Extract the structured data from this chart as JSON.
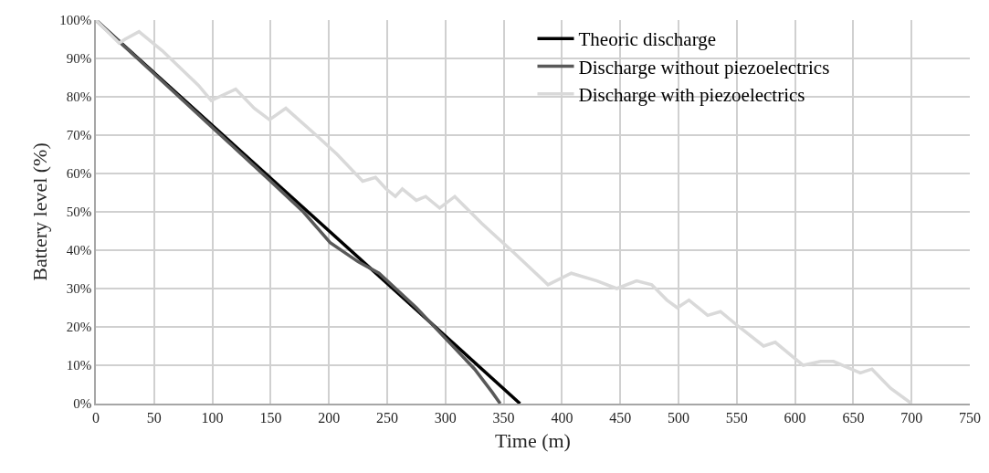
{
  "chart_data": {
    "type": "line",
    "xlabel": "Time (m)",
    "ylabel": "Battery level (%)",
    "series": [
      {
        "name": "Theoric discharge",
        "color": "#000000",
        "x": [
          0,
          364
        ],
        "values": [
          100,
          0
        ]
      },
      {
        "name": "Discharge without piezoelectrics",
        "color": "#595959",
        "x": [
          0,
          25,
          50,
          75,
          100,
          150,
          178,
          201,
          225,
          243,
          275,
          300,
          325,
          340,
          347
        ],
        "values": [
          100,
          93,
          86,
          79,
          72,
          58,
          50,
          42,
          37,
          34,
          25,
          17,
          9,
          3,
          0
        ]
      },
      {
        "name": "Discharge with piezoelectrics",
        "color": "#d9d9d9",
        "x": [
          0,
          20,
          25,
          37,
          57,
          88,
          99,
          120,
          136,
          149,
          163,
          189,
          207,
          229,
          240,
          249,
          257,
          263,
          275,
          283,
          295,
          308,
          331,
          360,
          388,
          408,
          430,
          447,
          464,
          477,
          490,
          499,
          509,
          525,
          536,
          552,
          573,
          583,
          607,
          622,
          633,
          656,
          666,
          682,
          700
        ],
        "values": [
          100,
          94,
          95,
          97,
          92,
          83,
          79,
          82,
          77,
          74,
          77,
          70,
          65,
          58,
          59,
          56,
          54,
          56,
          53,
          54,
          51,
          54,
          47,
          39,
          31,
          34,
          32,
          30,
          32,
          31,
          27,
          25,
          27,
          23,
          24,
          20,
          15,
          16,
          10,
          11,
          11,
          8,
          9,
          4,
          0
        ]
      }
    ],
    "xlim": [
      0,
      750
    ],
    "xticks": [
      0,
      50,
      100,
      150,
      200,
      250,
      300,
      350,
      400,
      450,
      500,
      550,
      600,
      650,
      700,
      750
    ],
    "ylim": [
      0,
      100
    ],
    "yticks": [
      {
        "value": 0,
        "label": "0%"
      },
      {
        "value": 10,
        "label": "10%"
      },
      {
        "value": 20,
        "label": "20%"
      },
      {
        "value": 30,
        "label": "30%"
      },
      {
        "value": 40,
        "label": "40%"
      },
      {
        "value": 50,
        "label": "50%"
      },
      {
        "value": 60,
        "label": "60%"
      },
      {
        "value": 70,
        "label": "70%"
      },
      {
        "value": 80,
        "label": "80%"
      },
      {
        "value": 90,
        "label": "90%"
      },
      {
        "value": 100,
        "label": "100%"
      }
    ],
    "grid": true,
    "legend": "top right",
    "marker": "none",
    "line_style": "solid"
  }
}
